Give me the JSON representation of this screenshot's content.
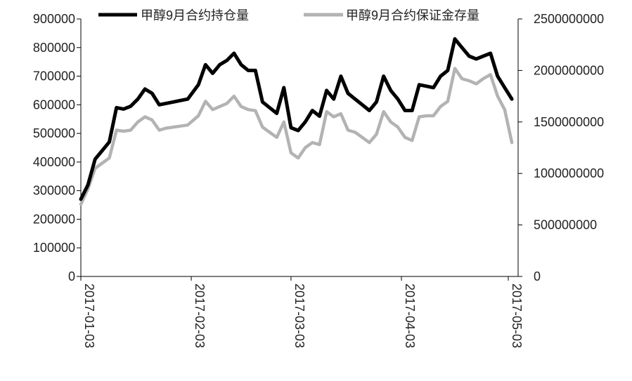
{
  "chart_data": {
    "type": "line",
    "x_ticks": [
      "2017-01-03",
      "2017-02-03",
      "2017-03-03",
      "2017-04-03",
      "2017-05-03"
    ],
    "y_left": {
      "ylim": [
        0,
        900000
      ],
      "ticks": [
        0,
        100000,
        200000,
        300000,
        400000,
        500000,
        600000,
        700000,
        800000,
        900000
      ],
      "tick_labels": [
        "0",
        "100000",
        "200000",
        "300000",
        "400000",
        "500000",
        "600000",
        "700000",
        "800000",
        "900000"
      ]
    },
    "y_right": {
      "ylim": [
        0,
        2500000000
      ],
      "ticks": [
        0,
        500000000,
        1000000000,
        1500000000,
        2000000000,
        2500000000
      ],
      "tick_labels": [
        "0",
        "500000000",
        "1000000000",
        "1500000000",
        "2000000000",
        "2500000000"
      ]
    },
    "legend_position": "top",
    "grid": false,
    "series": [
      {
        "name": "甲醇9月合约持仓量",
        "axis": "left",
        "color": "#000000",
        "x": [
          "2017-01-03",
          "2017-01-05",
          "2017-01-07",
          "2017-01-09",
          "2017-01-11",
          "2017-01-13",
          "2017-01-15",
          "2017-01-17",
          "2017-01-19",
          "2017-01-21",
          "2017-01-23",
          "2017-01-25",
          "2017-01-27",
          "2017-01-29",
          "2017-01-31",
          "2017-02-02",
          "2017-02-05",
          "2017-02-07",
          "2017-02-09",
          "2017-02-11",
          "2017-02-13",
          "2017-02-15",
          "2017-02-17",
          "2017-02-19",
          "2017-02-21",
          "2017-02-23",
          "2017-02-25",
          "2017-02-27",
          "2017-03-01",
          "2017-03-03",
          "2017-03-05",
          "2017-03-07",
          "2017-03-09",
          "2017-03-11",
          "2017-03-13",
          "2017-03-15",
          "2017-03-17",
          "2017-03-19",
          "2017-03-21",
          "2017-03-23",
          "2017-03-25",
          "2017-03-27",
          "2017-03-29",
          "2017-03-31",
          "2017-04-02",
          "2017-04-04",
          "2017-04-06",
          "2017-04-08",
          "2017-04-10",
          "2017-04-12",
          "2017-04-14",
          "2017-04-16",
          "2017-04-18",
          "2017-04-20",
          "2017-04-22",
          "2017-04-24",
          "2017-04-26",
          "2017-04-28",
          "2017-04-30",
          "2017-05-02",
          "2017-05-04"
        ],
        "values": [
          270000,
          320000,
          410000,
          440000,
          470000,
          590000,
          585000,
          595000,
          620000,
          655000,
          640000,
          600000,
          605000,
          610000,
          615000,
          620000,
          670000,
          740000,
          710000,
          740000,
          755000,
          780000,
          740000,
          720000,
          720000,
          610000,
          590000,
          570000,
          660000,
          520000,
          510000,
          540000,
          580000,
          560000,
          650000,
          620000,
          700000,
          640000,
          620000,
          600000,
          580000,
          610000,
          700000,
          650000,
          620000,
          580000,
          580000,
          670000,
          665000,
          660000,
          700000,
          720000,
          830000,
          800000,
          770000,
          760000,
          770000,
          780000,
          700000,
          660000,
          620000
        ]
      },
      {
        "name": "甲醇9月合约保证金存量",
        "axis": "right",
        "color": "#b3b3b3",
        "x": [
          "2017-01-03",
          "2017-01-05",
          "2017-01-07",
          "2017-01-09",
          "2017-01-11",
          "2017-01-13",
          "2017-01-15",
          "2017-01-17",
          "2017-01-19",
          "2017-01-21",
          "2017-01-23",
          "2017-01-25",
          "2017-01-27",
          "2017-01-29",
          "2017-01-31",
          "2017-02-02",
          "2017-02-05",
          "2017-02-07",
          "2017-02-09",
          "2017-02-11",
          "2017-02-13",
          "2017-02-15",
          "2017-02-17",
          "2017-02-19",
          "2017-02-21",
          "2017-02-23",
          "2017-02-25",
          "2017-02-27",
          "2017-03-01",
          "2017-03-03",
          "2017-03-05",
          "2017-03-07",
          "2017-03-09",
          "2017-03-11",
          "2017-03-13",
          "2017-03-15",
          "2017-03-17",
          "2017-03-19",
          "2017-03-21",
          "2017-03-23",
          "2017-03-25",
          "2017-03-27",
          "2017-03-29",
          "2017-03-31",
          "2017-04-02",
          "2017-04-04",
          "2017-04-06",
          "2017-04-08",
          "2017-04-10",
          "2017-04-12",
          "2017-04-14",
          "2017-04-16",
          "2017-04-18",
          "2017-04-20",
          "2017-04-22",
          "2017-04-24",
          "2017-04-26",
          "2017-04-28",
          "2017-04-30",
          "2017-05-02",
          "2017-05-04"
        ],
        "values": [
          700000000,
          850000000,
          1050000000,
          1100000000,
          1150000000,
          1420000000,
          1410000000,
          1420000000,
          1500000000,
          1550000000,
          1520000000,
          1420000000,
          1440000000,
          1450000000,
          1460000000,
          1470000000,
          1560000000,
          1700000000,
          1620000000,
          1650000000,
          1680000000,
          1750000000,
          1650000000,
          1620000000,
          1610000000,
          1450000000,
          1400000000,
          1350000000,
          1500000000,
          1200000000,
          1150000000,
          1250000000,
          1300000000,
          1280000000,
          1600000000,
          1550000000,
          1580000000,
          1420000000,
          1400000000,
          1350000000,
          1300000000,
          1380000000,
          1600000000,
          1500000000,
          1450000000,
          1350000000,
          1320000000,
          1550000000,
          1560000000,
          1560000000,
          1650000000,
          1700000000,
          2020000000,
          1920000000,
          1900000000,
          1870000000,
          1920000000,
          1960000000,
          1750000000,
          1620000000,
          1300000000
        ]
      }
    ]
  }
}
